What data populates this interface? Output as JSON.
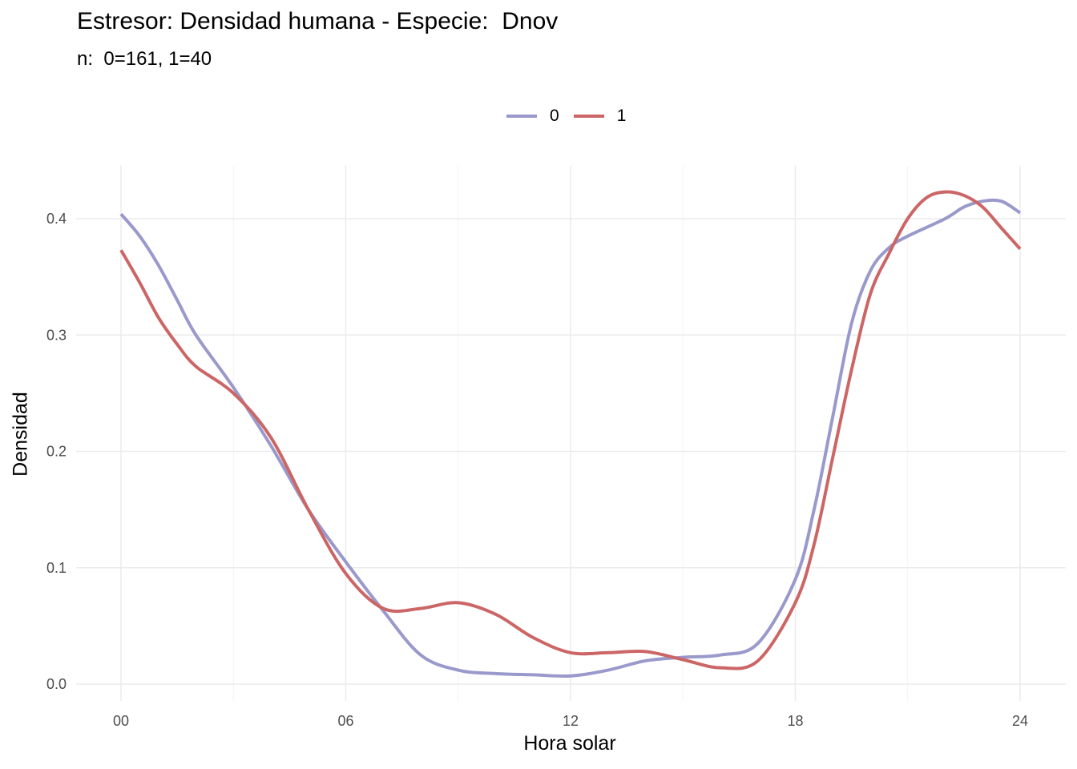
{
  "chart_data": {
    "type": "line",
    "title": "Estresor: Densidad humana - Especie:  Dnov",
    "subtitle": "n:  0=161, 1=40",
    "xlabel": "Hora solar",
    "ylabel": "Densidad",
    "xlim": [
      0,
      24
    ],
    "ylim": [
      0,
      0.43
    ],
    "x_ticks": [
      "00",
      "06",
      "12",
      "18",
      "24"
    ],
    "y_ticks": [
      "0.0",
      "0.1",
      "0.2",
      "0.3",
      "0.4"
    ],
    "legend_position": "top",
    "grid": true,
    "series": [
      {
        "name": "0",
        "color": "#9999CC",
        "x": [
          0,
          0.5,
          1,
          1.5,
          2,
          3,
          4,
          5,
          6,
          7,
          8,
          9,
          10,
          11,
          12,
          13,
          14,
          15,
          16,
          17,
          18,
          18.5,
          19,
          19.5,
          20,
          20.5,
          21,
          22,
          22.5,
          23,
          23.5,
          24
        ],
        "y": [
          0.404,
          0.385,
          0.36,
          0.33,
          0.3,
          0.255,
          0.205,
          0.15,
          0.105,
          0.063,
          0.025,
          0.012,
          0.009,
          0.008,
          0.007,
          0.012,
          0.02,
          0.023,
          0.025,
          0.035,
          0.09,
          0.15,
          0.23,
          0.31,
          0.355,
          0.375,
          0.385,
          0.4,
          0.41,
          0.415,
          0.415,
          0.405
        ]
      },
      {
        "name": "1",
        "color": "#CC6666",
        "x": [
          0,
          0.5,
          1,
          1.5,
          2,
          3,
          4,
          5,
          6,
          7,
          8,
          9,
          10,
          11,
          12,
          13,
          14,
          15,
          16,
          17,
          18,
          18.5,
          19,
          19.5,
          20,
          20.5,
          21,
          21.5,
          22,
          22.5,
          23,
          23.5,
          24
        ],
        "y": [
          0.373,
          0.345,
          0.315,
          0.292,
          0.273,
          0.25,
          0.212,
          0.15,
          0.095,
          0.065,
          0.065,
          0.07,
          0.06,
          0.04,
          0.027,
          0.027,
          0.028,
          0.021,
          0.014,
          0.02,
          0.07,
          0.12,
          0.195,
          0.27,
          0.335,
          0.37,
          0.4,
          0.418,
          0.423,
          0.42,
          0.41,
          0.392,
          0.374
        ]
      }
    ]
  }
}
